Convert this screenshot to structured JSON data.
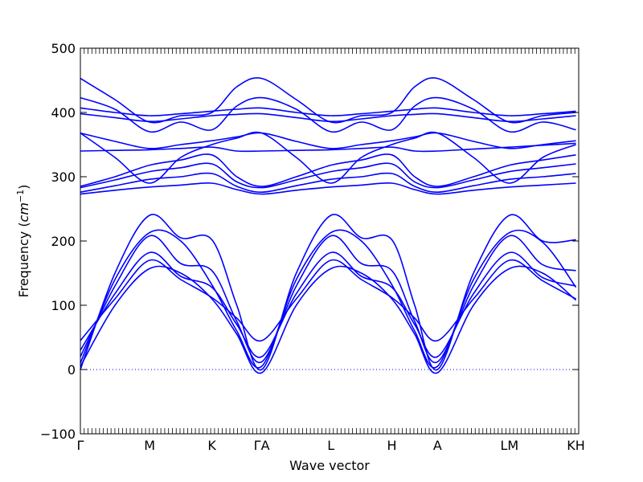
{
  "chart_data": {
    "type": "line",
    "title": "",
    "xlabel": "Wave vector",
    "ylabel": "Frequency",
    "ylabel_unit": "cm",
    "ylabel_unit_exp": "−1",
    "ylim": [
      -100,
      500
    ],
    "yticks": [
      -100,
      0,
      100,
      200,
      300,
      400,
      500
    ],
    "xticks": [
      {
        "label": "Γ",
        "x": 0
      },
      {
        "label": "M",
        "x": 1.0
      },
      {
        "label": "K",
        "x": 1.9
      },
      {
        "label": "ΓA",
        "x": 2.62
      },
      {
        "label": "L",
        "x": 3.62
      },
      {
        "label": "H",
        "x": 4.5
      },
      {
        "label": "A",
        "x": 5.16
      },
      {
        "label": "LM",
        "x": 6.2
      },
      {
        "label": "KH",
        "x": 7.16
      }
    ],
    "xlim": [
      0,
      7.2
    ],
    "grid": false,
    "zero_line": 0,
    "line_color": "#0000ff",
    "series": [
      {
        "x": [
          0,
          0.5,
          1.0,
          1.45,
          1.9,
          2.26,
          2.62,
          3.12,
          3.62,
          4.06,
          4.5,
          4.83,
          5.16,
          5.68,
          6.2,
          6.68,
          7.16
        ],
        "values": [
          0,
          150,
          240,
          205,
          202,
          100,
          0,
          150,
          240,
          205,
          202,
          100,
          0,
          150,
          240,
          200,
          202
        ]
      },
      {
        "x": [
          0,
          0.5,
          1.0,
          1.45,
          1.9,
          2.26,
          2.62,
          3.12,
          3.62,
          4.06,
          4.5,
          4.83,
          5.16,
          5.68,
          6.2,
          6.68,
          7.16
        ],
        "values": [
          10,
          140,
          213,
          200,
          132,
          60,
          5,
          140,
          213,
          200,
          132,
          60,
          5,
          140,
          213,
          198,
          128
        ]
      },
      {
        "x": [
          0,
          0.5,
          1.0,
          1.45,
          1.9,
          2.26,
          2.62,
          3.12,
          3.62,
          4.06,
          4.5,
          4.83,
          5.16,
          5.68,
          6.2,
          6.68,
          7.16
        ],
        "values": [
          20,
          130,
          208,
          165,
          154,
          75,
          12,
          130,
          208,
          165,
          154,
          75,
          12,
          130,
          208,
          163,
          154
        ]
      },
      {
        "x": [
          0,
          0.5,
          1.0,
          1.45,
          1.9,
          2.26,
          2.62,
          3.12,
          3.62,
          4.06,
          4.5,
          4.83,
          5.16,
          5.68,
          6.2,
          6.68,
          7.16
        ],
        "values": [
          30,
          118,
          182,
          145,
          128,
          70,
          20,
          118,
          182,
          145,
          128,
          70,
          20,
          118,
          182,
          143,
          130
        ]
      },
      {
        "x": [
          0,
          0.5,
          1.0,
          1.45,
          1.9,
          2.26,
          2.62,
          3.12,
          3.62,
          4.06,
          4.5,
          4.83,
          5.16,
          5.68,
          6.2,
          6.68,
          7.16
        ],
        "values": [
          45,
          110,
          170,
          140,
          112,
          80,
          45,
          110,
          170,
          140,
          112,
          80,
          45,
          110,
          170,
          138,
          110
        ]
      },
      {
        "x": [
          0,
          0.5,
          1.0,
          1.45,
          1.9,
          2.26,
          2.62,
          3.12,
          3.62,
          4.06,
          4.5,
          4.83,
          5.16,
          5.68,
          6.2,
          6.68,
          7.16
        ],
        "values": [
          5,
          100,
          157,
          150,
          110,
          55,
          -5,
          100,
          157,
          150,
          110,
          55,
          -5,
          100,
          157,
          150,
          108
        ]
      },
      {
        "x": [
          0,
          0.5,
          1.0,
          1.45,
          1.9,
          2.26,
          2.62,
          3.12,
          3.62,
          4.06,
          4.5,
          4.83,
          5.16,
          5.68,
          6.2,
          6.68,
          7.16
        ],
        "values": [
          453,
          420,
          385,
          395,
          400,
          440,
          453,
          420,
          385,
          395,
          400,
          440,
          453,
          420,
          385,
          395,
          400
        ]
      },
      {
        "x": [
          0,
          0.5,
          1.0,
          1.45,
          1.9,
          2.26,
          2.62,
          3.12,
          3.62,
          4.06,
          4.5,
          4.83,
          5.16,
          5.68,
          6.2,
          6.68,
          7.16
        ],
        "values": [
          423,
          405,
          370,
          385,
          373,
          410,
          423,
          405,
          370,
          385,
          373,
          410,
          423,
          405,
          370,
          385,
          373
        ]
      },
      {
        "x": [
          0,
          0.5,
          1.0,
          1.45,
          1.9,
          2.26,
          2.62,
          3.12,
          3.62,
          4.06,
          4.5,
          4.83,
          5.16,
          5.68,
          6.2,
          6.68,
          7.16
        ],
        "values": [
          407,
          400,
          395,
          398,
          402,
          405,
          407,
          400,
          395,
          398,
          402,
          405,
          407,
          400,
          395,
          398,
          402
        ]
      },
      {
        "x": [
          0,
          0.5,
          1.0,
          1.45,
          1.9,
          2.26,
          2.62,
          3.12,
          3.62,
          4.06,
          4.5,
          4.83,
          5.16,
          5.68,
          6.2,
          6.68,
          7.16
        ],
        "values": [
          398,
          392,
          386,
          390,
          395,
          397,
          398,
          392,
          386,
          390,
          395,
          397,
          398,
          392,
          386,
          390,
          395
        ]
      },
      {
        "x": [
          0,
          0.5,
          1.0,
          1.45,
          1.9,
          2.26,
          2.62,
          3.12,
          3.62,
          4.06,
          4.5,
          4.83,
          5.16,
          5.68,
          6.2,
          6.68,
          7.16
        ],
        "values": [
          368,
          355,
          344,
          350,
          356,
          362,
          368,
          355,
          344,
          350,
          356,
          362,
          368,
          355,
          344,
          350,
          356
        ]
      },
      {
        "x": [
          0,
          0.5,
          1.0,
          1.45,
          1.9,
          2.26,
          2.62,
          3.12,
          3.62,
          4.06,
          4.5,
          4.83,
          5.16,
          5.68,
          6.2,
          6.68,
          7.16
        ],
        "values": [
          368,
          330,
          290,
          330,
          350,
          360,
          368,
          330,
          290,
          330,
          350,
          360,
          368,
          330,
          290,
          330,
          350
        ]
      },
      {
        "x": [
          0,
          0.5,
          1.0,
          1.45,
          1.9,
          2.26,
          2.62,
          3.12,
          3.62,
          4.06,
          4.5,
          4.83,
          5.16,
          5.68,
          6.2,
          6.68,
          7.16
        ],
        "values": [
          340,
          341,
          342,
          344,
          346,
          340,
          340,
          341,
          342,
          344,
          346,
          340,
          340,
          343,
          346,
          349,
          352
        ]
      },
      {
        "x": [
          0,
          0.5,
          1.0,
          1.45,
          1.9,
          2.26,
          2.62,
          3.12,
          3.62,
          4.06,
          4.5,
          4.83,
          5.16,
          5.68,
          6.2,
          6.68,
          7.16
        ],
        "values": [
          285,
          300,
          318,
          326,
          334,
          300,
          285,
          300,
          318,
          326,
          334,
          300,
          285,
          300,
          318,
          326,
          334
        ]
      },
      {
        "x": [
          0,
          0.5,
          1.0,
          1.45,
          1.9,
          2.26,
          2.62,
          3.12,
          3.62,
          4.06,
          4.5,
          4.83,
          5.16,
          5.68,
          6.2,
          6.68,
          7.16
        ],
        "values": [
          283,
          295,
          308,
          314,
          320,
          292,
          283,
          295,
          308,
          314,
          320,
          292,
          283,
          295,
          308,
          314,
          320
        ]
      },
      {
        "x": [
          0,
          0.5,
          1.0,
          1.45,
          1.9,
          2.26,
          2.62,
          3.12,
          3.62,
          4.06,
          4.5,
          4.83,
          5.16,
          5.68,
          6.2,
          6.68,
          7.16
        ],
        "values": [
          276,
          286,
          296,
          300,
          305,
          285,
          276,
          286,
          296,
          300,
          305,
          285,
          276,
          286,
          296,
          300,
          305
        ]
      },
      {
        "x": [
          0,
          0.5,
          1.0,
          1.45,
          1.9,
          2.26,
          2.62,
          3.12,
          3.62,
          4.06,
          4.5,
          4.83,
          5.16,
          5.68,
          6.2,
          6.68,
          7.16
        ],
        "values": [
          273,
          279,
          284,
          287,
          290,
          280,
          273,
          279,
          284,
          287,
          290,
          280,
          273,
          279,
          284,
          287,
          290
        ]
      }
    ]
  }
}
